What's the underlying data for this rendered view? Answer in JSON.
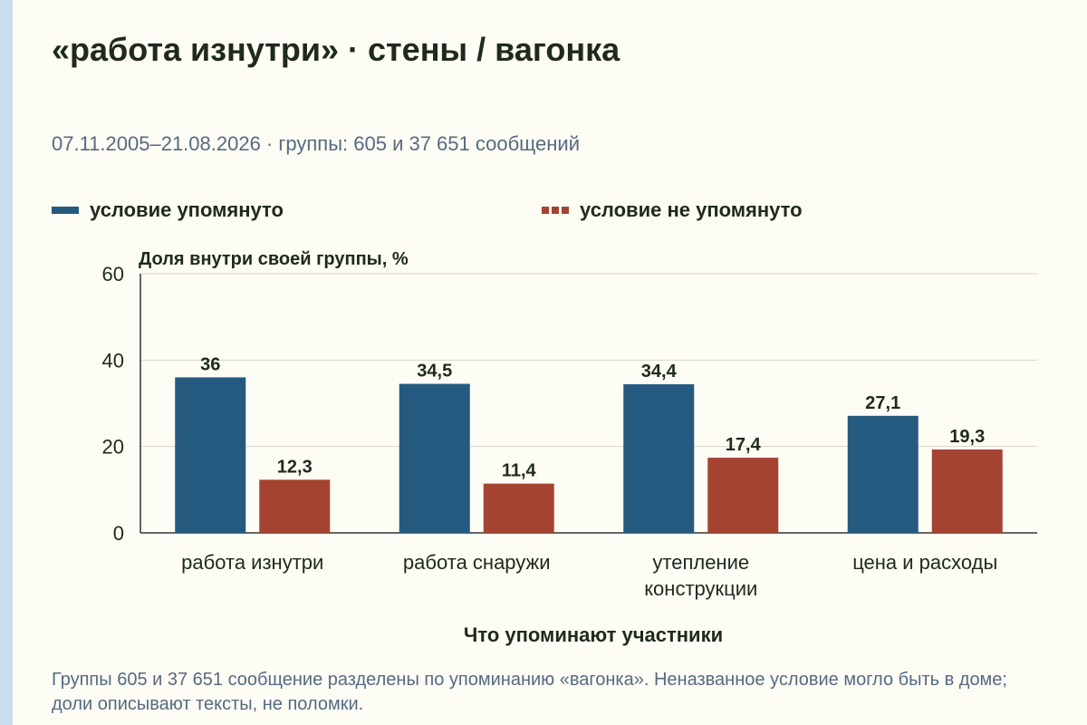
{
  "title": "«работа изнутри» · стены / вагонка",
  "subtitle": "07.11.2005–21.08.2026 · группы: 605 и 37 651 сообщений",
  "note": "Группы 605 и 37 651 сообщение разделены по упоминанию «вагонка». Неназванное условие могло быть в доме; доли описывают тексты, не поломки.",
  "chart_data": {
    "type": "bar",
    "title": "«работа изнутри» · стены / вагонка",
    "ylabel": "Доля внутри своей группы, %",
    "xlabel": "Что упоминают участники",
    "ylim": [
      0,
      60
    ],
    "yticks": [
      0,
      20,
      40,
      60
    ],
    "grid": true,
    "legend_position": "top",
    "categories": [
      [
        "работа изнутри"
      ],
      [
        "работа снаружи"
      ],
      [
        "утепление",
        "конструкции"
      ],
      [
        "цена и расходы"
      ]
    ],
    "series": [
      {
        "name": "условие упомянуто",
        "color": "#255a80",
        "style": "solid",
        "values": [
          36,
          34.5,
          34.4,
          27.1
        ],
        "labels": [
          "36",
          "34,5",
          "34,4",
          "27,1"
        ]
      },
      {
        "name": "условие не упомянуто",
        "color": "#a44430",
        "style": "dashed",
        "values": [
          12.3,
          11.4,
          17.4,
          19.3
        ],
        "labels": [
          "12,3",
          "11,4",
          "17,4",
          "19,3"
        ]
      }
    ]
  }
}
